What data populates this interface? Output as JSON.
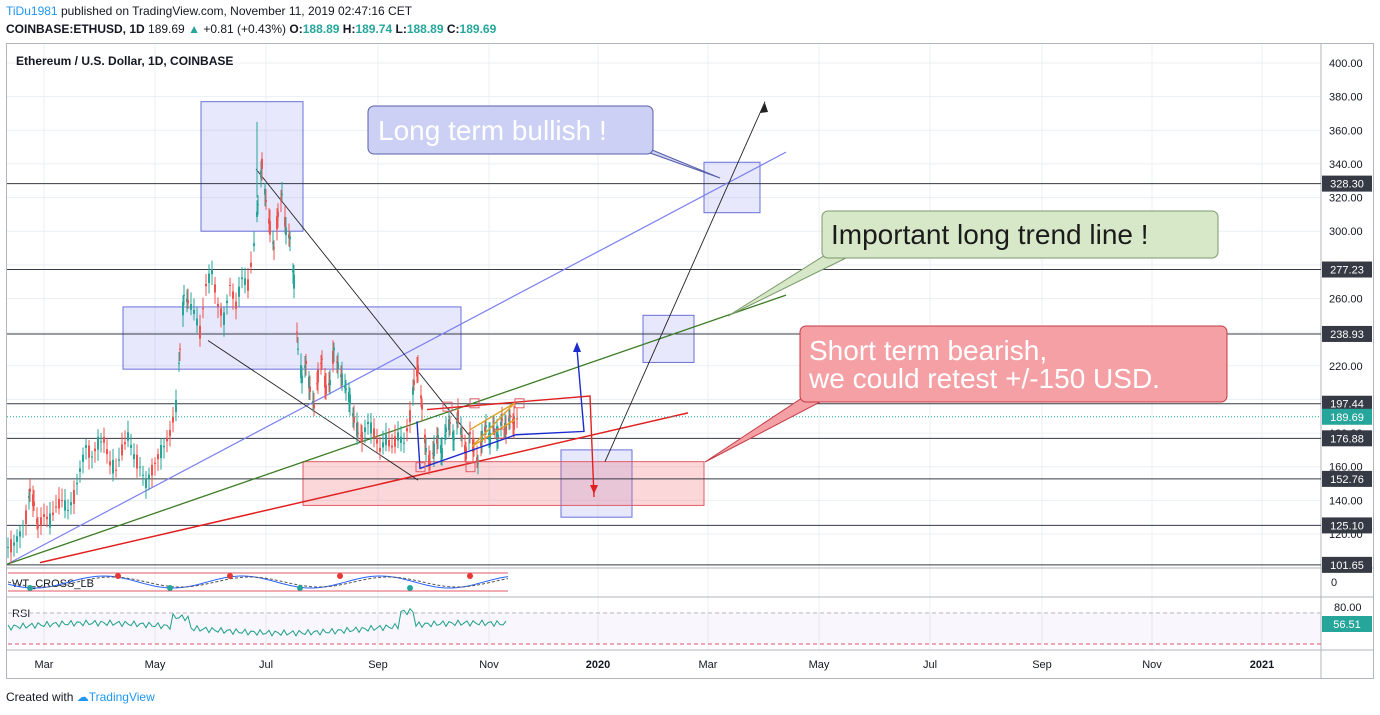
{
  "header": {
    "user": "TiDu1981",
    "published_text": "published on TradingView.com, November 11, 2019 02:47:16 CET",
    "symbol": "COINBASE:ETHUSD, 1D",
    "last": "189.69",
    "change_arrow": "▲",
    "change": "+0.81 (+0.43%)",
    "o_label": "O:",
    "o": "188.89",
    "h_label": "H:",
    "h": "189.74",
    "l_label": "L:",
    "l": "188.89",
    "c_label": "C:",
    "c": "189.69"
  },
  "footer": {
    "created_with": "Created with",
    "brand": "TradingView"
  },
  "chart_data": {
    "type": "candlestick",
    "title": "Ethereum / U.S. Dollar, 1D, COINBASE",
    "y_ticks": [
      120,
      140,
      160,
      180,
      200,
      220,
      240,
      260,
      280,
      300,
      320,
      340,
      360,
      380,
      400
    ],
    "y_tick_labels": [
      "120.00",
      "140.00",
      "160.00",
      "180.00",
      "200.00",
      "220.00",
      "240.00",
      "260.00",
      "280.00",
      "300.00",
      "320.00",
      "340.00",
      "360.00",
      "380.00",
      "400.00"
    ],
    "ylim": [
      100,
      410
    ],
    "x_labels": [
      "Mar",
      "May",
      "Jul",
      "Sep",
      "Nov",
      "2020",
      "Mar",
      "May",
      "Jul",
      "Sep",
      "Nov",
      "2021"
    ],
    "price_series": [
      [
        0,
        112
      ],
      [
        6,
        114
      ],
      [
        12,
        120
      ],
      [
        18,
        130
      ],
      [
        22,
        146
      ],
      [
        26,
        138
      ],
      [
        30,
        124
      ],
      [
        36,
        131
      ],
      [
        42,
        128
      ],
      [
        48,
        136
      ],
      [
        54,
        140
      ],
      [
        60,
        134
      ],
      [
        66,
        142
      ],
      [
        72,
        158
      ],
      [
        78,
        172
      ],
      [
        84,
        166
      ],
      [
        90,
        174
      ],
      [
        96,
        176
      ],
      [
        102,
        162
      ],
      [
        108,
        158
      ],
      [
        114,
        170
      ],
      [
        120,
        178
      ],
      [
        126,
        166
      ],
      [
        132,
        160
      ],
      [
        138,
        150
      ],
      [
        144,
        158
      ],
      [
        150,
        166
      ],
      [
        156,
        172
      ],
      [
        162,
        180
      ],
      [
        168,
        196
      ],
      [
        172,
        230
      ],
      [
        176,
        262
      ],
      [
        180,
        258
      ],
      [
        186,
        252
      ],
      [
        192,
        240
      ],
      [
        198,
        268
      ],
      [
        204,
        276
      ],
      [
        210,
        256
      ],
      [
        216,
        248
      ],
      [
        222,
        268
      ],
      [
        228,
        256
      ],
      [
        234,
        272
      ],
      [
        240,
        268
      ],
      [
        246,
        292
      ],
      [
        250,
        316
      ],
      [
        254,
        340
      ],
      [
        258,
        318
      ],
      [
        262,
        302
      ],
      [
        266,
        290
      ],
      [
        270,
        310
      ],
      [
        274,
        322
      ],
      [
        278,
        300
      ],
      [
        282,
        296
      ],
      [
        286,
        270
      ],
      [
        290,
        230
      ],
      [
        294,
        212
      ],
      [
        298,
        222
      ],
      [
        302,
        206
      ],
      [
        306,
        196
      ],
      [
        310,
        214
      ],
      [
        314,
        224
      ],
      [
        318,
        206
      ],
      [
        322,
        210
      ],
      [
        326,
        230
      ],
      [
        330,
        220
      ],
      [
        334,
        212
      ],
      [
        338,
        206
      ],
      [
        342,
        200
      ],
      [
        346,
        188
      ],
      [
        350,
        180
      ],
      [
        354,
        178
      ],
      [
        360,
        186
      ],
      [
        366,
        180
      ],
      [
        372,
        170
      ],
      [
        378,
        176
      ],
      [
        384,
        172
      ],
      [
        390,
        178
      ],
      [
        396,
        174
      ],
      [
        402,
        190
      ],
      [
        406,
        210
      ],
      [
        410,
        218
      ],
      [
        414,
        196
      ],
      [
        418,
        170
      ],
      [
        422,
        162
      ],
      [
        426,
        170
      ],
      [
        430,
        178
      ],
      [
        434,
        168
      ],
      [
        438,
        182
      ],
      [
        442,
        186
      ],
      [
        446,
        176
      ],
      [
        450,
        190
      ],
      [
        454,
        178
      ],
      [
        458,
        168
      ],
      [
        462,
        180
      ],
      [
        466,
        170
      ],
      [
        470,
        162
      ],
      [
        474,
        178
      ],
      [
        478,
        184
      ],
      [
        482,
        176
      ],
      [
        486,
        186
      ],
      [
        490,
        178
      ],
      [
        494,
        188
      ],
      [
        498,
        182
      ],
      [
        502,
        190
      ],
      [
        506,
        186
      ],
      [
        510,
        189.69
      ]
    ],
    "horizontal_levels": [
      {
        "value": 328.3,
        "label": "328.30"
      },
      {
        "value": 277.23,
        "label": "277.23"
      },
      {
        "value": 238.93,
        "label": "238.93"
      },
      {
        "value": 197.44,
        "label": "197.44"
      },
      {
        "value": 176.88,
        "label": "176.88"
      },
      {
        "value": 152.76,
        "label": "152.76"
      },
      {
        "value": 125.1,
        "label": "125.10"
      },
      {
        "value": 101.65,
        "label": "101.65"
      }
    ],
    "last_price": {
      "value": 189.69,
      "label": "189.69"
    },
    "annotations": [
      {
        "text": "Long term bullish !"
      },
      {
        "text": "Important long trend line !"
      },
      {
        "lines": [
          "Short term bearish,",
          "we could retest +/-150 USD."
        ]
      }
    ],
    "indicators": [
      {
        "name": "WT_CROSS_LB",
        "zero_label": "0"
      },
      {
        "name": "RSI",
        "upper_label": "80.00",
        "last_value": 56.51,
        "last_label": "56.51"
      }
    ],
    "colors": {
      "up": "#26a69a",
      "down": "#ef5350",
      "grid": "#eceff2",
      "levels": "#363a45",
      "last": "#26a69a"
    }
  }
}
